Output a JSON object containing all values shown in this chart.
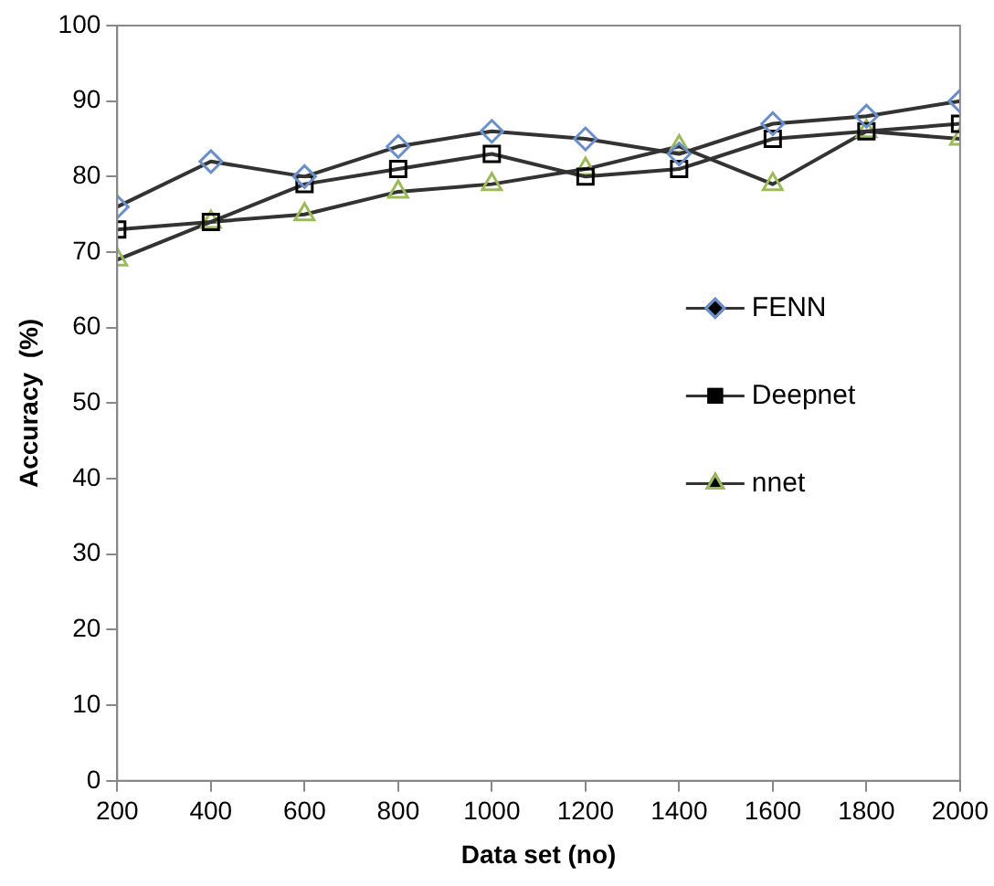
{
  "chart_data": {
    "type": "line",
    "xlabel": "Data set (no)",
    "ylabel": "Accuracy  (%)",
    "x": [
      200,
      400,
      600,
      800,
      1000,
      1200,
      1400,
      1600,
      1800,
      2000
    ],
    "xlim": [
      200,
      2000
    ],
    "xticks": [
      200,
      400,
      600,
      800,
      1000,
      1200,
      1400,
      1600,
      1800,
      2000
    ],
    "ylim": [
      0,
      100
    ],
    "yticks": [
      0,
      10,
      20,
      30,
      40,
      50,
      60,
      70,
      80,
      90,
      100
    ],
    "grid": false,
    "legend": "right",
    "series": [
      {
        "name": "FENN",
        "color": "#6b8fc9",
        "marker": "diamond",
        "values": [
          76,
          82,
          80,
          84,
          86,
          85,
          83,
          87,
          88,
          90
        ]
      },
      {
        "name": "Deepnet",
        "color": "#000000",
        "marker": "square",
        "values": [
          73,
          74,
          79,
          81,
          83,
          80,
          81,
          85,
          86,
          87
        ]
      },
      {
        "name": "nnet",
        "color": "#9bbb59",
        "marker": "triangle",
        "values": [
          69,
          74,
          75,
          78,
          79,
          81,
          84,
          79,
          86,
          85
        ]
      }
    ]
  }
}
